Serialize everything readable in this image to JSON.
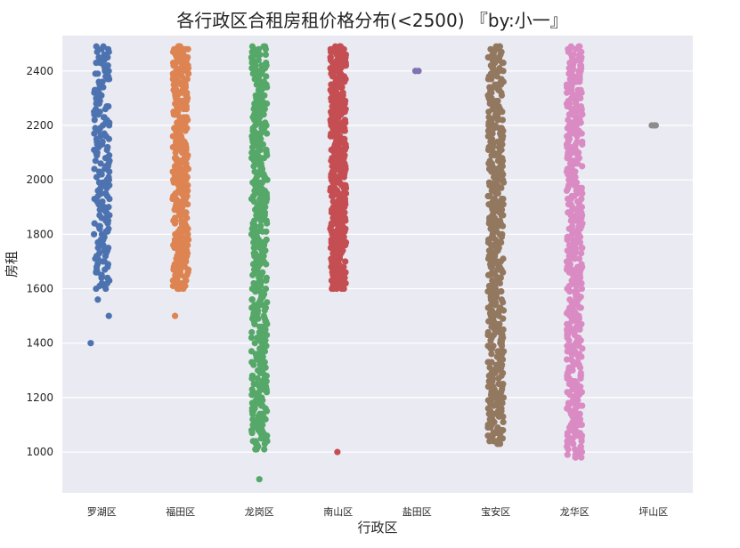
{
  "chart_data": {
    "type": "scatter",
    "subtype": "strip",
    "title": "各行政区合租房租价格分布(<2500)       『by:小一』",
    "xlabel": "行政区",
    "ylabel": "房租",
    "ylim": [
      850,
      2530
    ],
    "yticks": [
      1000,
      1200,
      1400,
      1600,
      1800,
      2000,
      2200,
      2400
    ],
    "grid": true,
    "legend": "none",
    "background": "#eaeaf2",
    "categories": [
      "罗湖区",
      "福田区",
      "龙岗区",
      "南山区",
      "盐田区",
      "宝安区",
      "龙华区",
      "坪山区"
    ],
    "colors": [
      "#4c72b0",
      "#dd8452",
      "#55a868",
      "#c44e52",
      "#8172b3",
      "#937860",
      "#da8bc3",
      "#8c8c8c"
    ],
    "series": [
      {
        "category": "罗湖区",
        "range": [
          1600,
          2490
        ],
        "density": 2,
        "outliers": [
          {
            "value": 1560,
            "offset": -0.05
          },
          {
            "value": 1500,
            "offset": 0.09
          },
          {
            "value": 1400,
            "offset": -0.14
          }
        ]
      },
      {
        "category": "福田区",
        "range": [
          1600,
          2490
        ],
        "density": 4,
        "outliers": [
          {
            "value": 1500,
            "offset": -0.07
          }
        ]
      },
      {
        "category": "龙岗区",
        "range": [
          1010,
          2490
        ],
        "density": 3,
        "outliers": [
          {
            "value": 900,
            "offset": 0.0
          }
        ]
      },
      {
        "category": "南山区",
        "range": [
          1600,
          2490
        ],
        "density": 5,
        "outliers": [
          {
            "value": 1000,
            "offset": -0.01
          }
        ]
      },
      {
        "category": "盐田区",
        "range": null,
        "density": 0,
        "outliers": [
          {
            "value": 2400,
            "offset": -0.02
          },
          {
            "value": 2400,
            "offset": 0.02
          }
        ]
      },
      {
        "category": "宝安区",
        "range": [
          1030,
          2490
        ],
        "density": 3,
        "outliers": []
      },
      {
        "category": "龙华区",
        "range": [
          980,
          2490
        ],
        "density": 3,
        "outliers": []
      },
      {
        "category": "坪山区",
        "range": null,
        "density": 0,
        "outliers": [
          {
            "value": 2200,
            "offset": -0.02
          },
          {
            "value": 2200,
            "offset": 0.01
          },
          {
            "value": 2200,
            "offset": 0.03
          }
        ]
      }
    ]
  }
}
